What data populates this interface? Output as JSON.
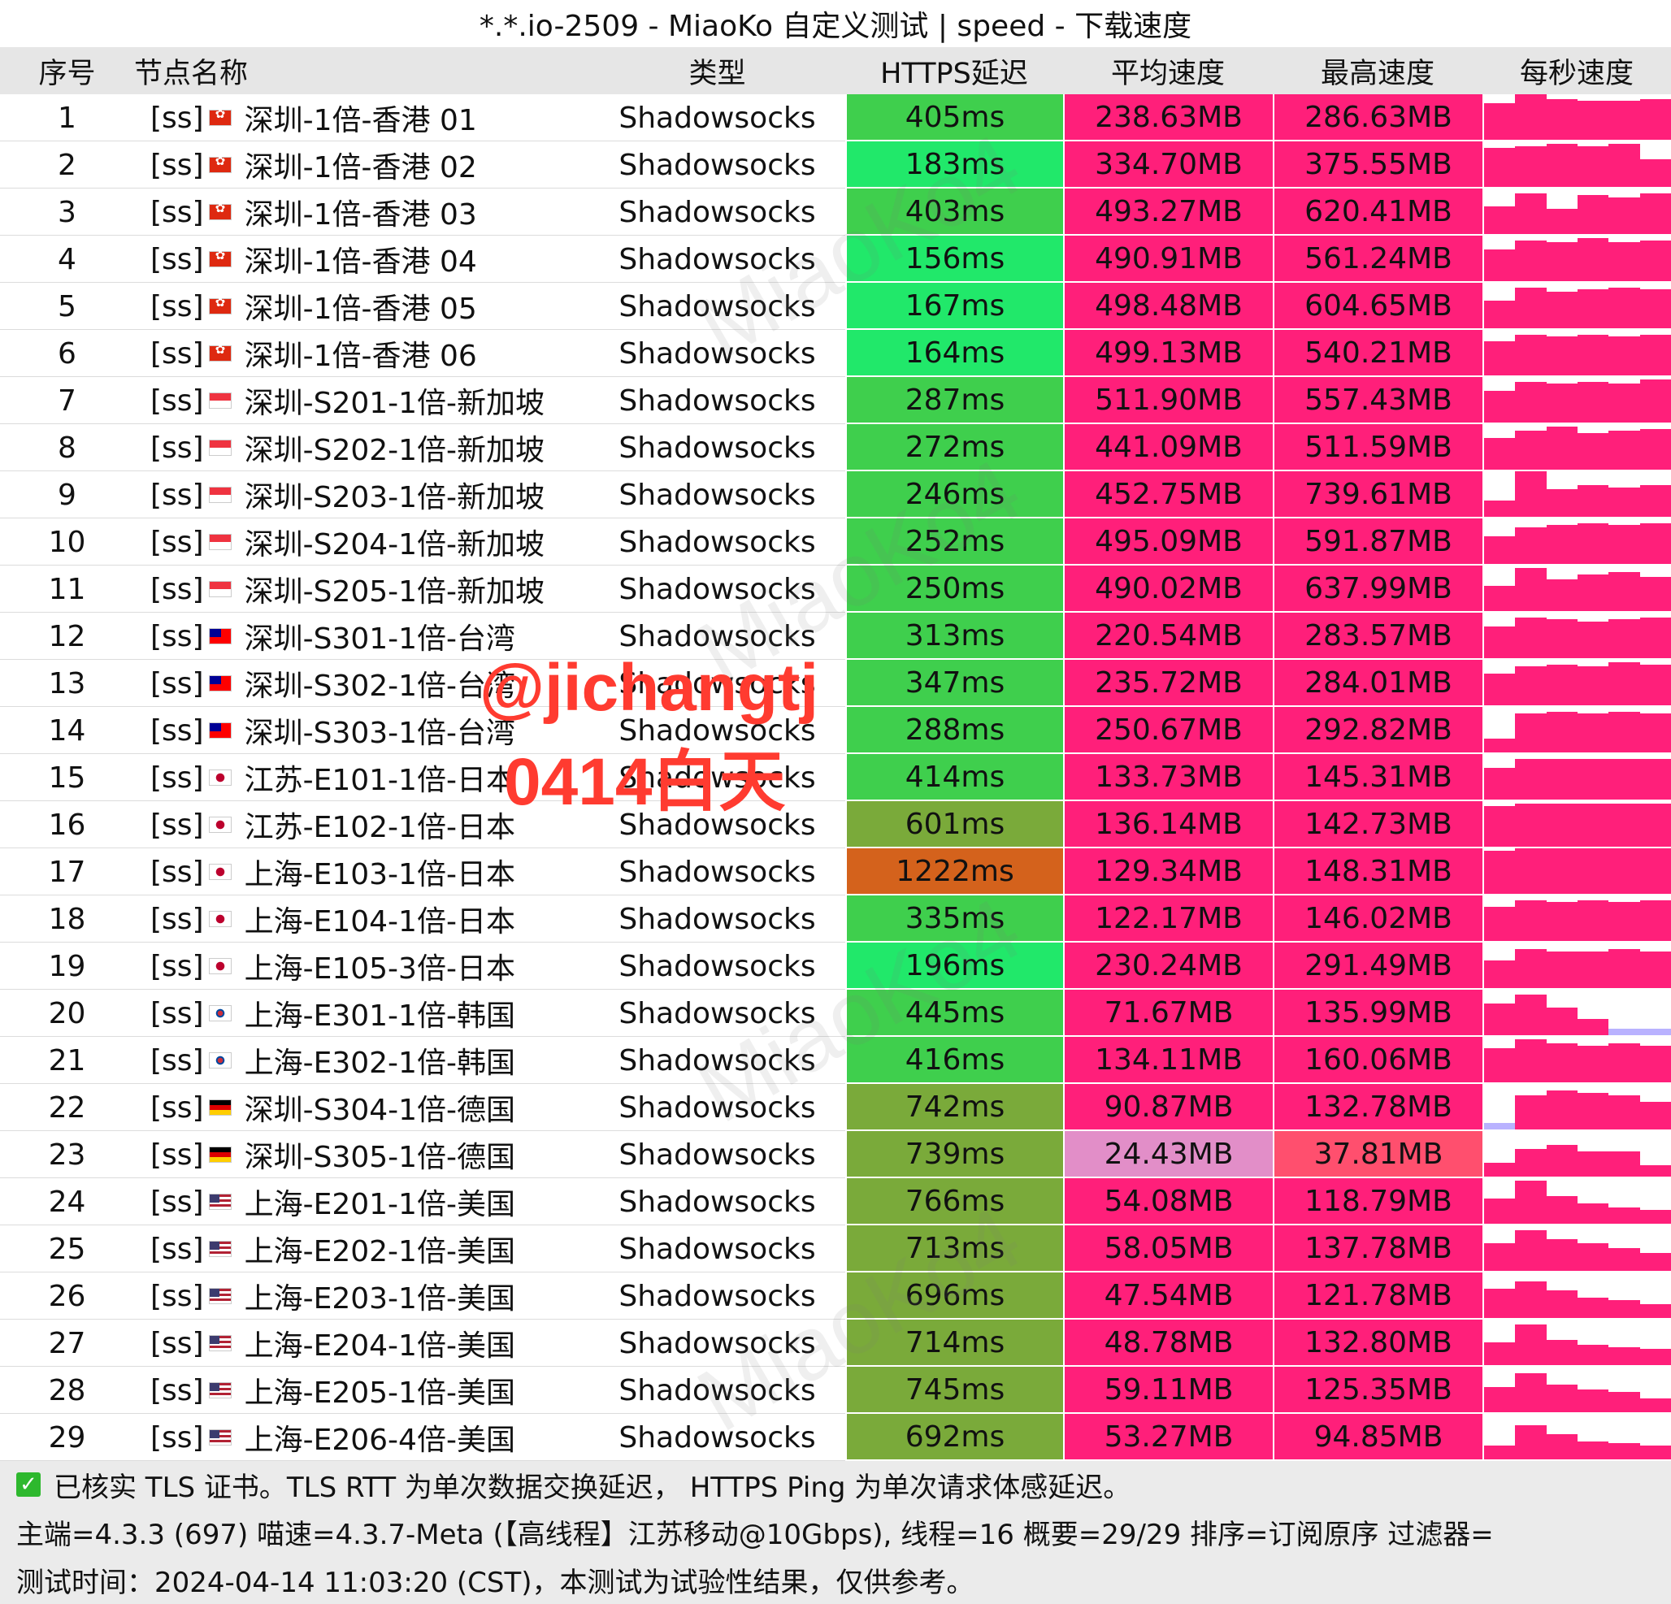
{
  "title": "*.*.io-2509 - MiaoKo 自定义测试 | speed - 下载速度",
  "headers": {
    "idx": "序号",
    "name": "节点名称",
    "type": "类型",
    "latency": "HTTPS延迟",
    "avg": "平均速度",
    "max": "最高速度",
    "per_sec": "每秒速度"
  },
  "colors": {
    "latency_good": "#21e86a",
    "latency_ok": "#3fcf4d",
    "latency_mid": "#7aaa3a",
    "latency_bad": "#d4621c",
    "speed_hot": "#ff1f7a",
    "speed_low": "#e28ec8",
    "speed_mid": "#ff4f6e",
    "spark_low": "#b9b2ff"
  },
  "rows": [
    {
      "idx": "1",
      "tag": "[ss]",
      "flag": "hk",
      "flag_icon": "hong-kong-flag-icon",
      "name": "深圳-1倍-香港 01",
      "type": "Shadowsocks",
      "latency": "405ms",
      "lat_level": "ok",
      "avg": "238.63MB",
      "avg_level": "hot",
      "max": "286.63MB",
      "max_level": "hot",
      "spark": [
        0.8,
        1,
        0.9,
        0.85,
        0.85,
        0.9
      ]
    },
    {
      "idx": "2",
      "tag": "[ss]",
      "flag": "hk",
      "flag_icon": "hong-kong-flag-icon",
      "name": "深圳-1倍-香港 02",
      "type": "Shadowsocks",
      "latency": "183ms",
      "lat_level": "good",
      "avg": "334.70MB",
      "avg_level": "hot",
      "max": "375.55MB",
      "max_level": "hot",
      "spark": [
        0.85,
        0.9,
        0.95,
        0.9,
        0.95,
        0.6
      ]
    },
    {
      "idx": "3",
      "tag": "[ss]",
      "flag": "hk",
      "flag_icon": "hong-kong-flag-icon",
      "name": "深圳-1倍-香港 03",
      "type": "Shadowsocks",
      "latency": "403ms",
      "lat_level": "ok",
      "avg": "493.27MB",
      "avg_level": "hot",
      "max": "620.41MB",
      "max_level": "hot",
      "spark": [
        0.6,
        0.9,
        0.55,
        0.85,
        0.8,
        0.9
      ]
    },
    {
      "idx": "4",
      "tag": "[ss]",
      "flag": "hk",
      "flag_icon": "hong-kong-flag-icon",
      "name": "深圳-1倍-香港 04",
      "type": "Shadowsocks",
      "latency": "156ms",
      "lat_level": "good",
      "avg": "490.91MB",
      "avg_level": "hot",
      "max": "561.24MB",
      "max_level": "hot",
      "spark": [
        0.7,
        0.9,
        0.85,
        0.95,
        0.85,
        0.9
      ]
    },
    {
      "idx": "5",
      "tag": "[ss]",
      "flag": "hk",
      "flag_icon": "hong-kong-flag-icon",
      "name": "深圳-1倍-香港 05",
      "type": "Shadowsocks",
      "latency": "167ms",
      "lat_level": "good",
      "avg": "498.48MB",
      "avg_level": "hot",
      "max": "604.65MB",
      "max_level": "hot",
      "spark": [
        0.6,
        0.9,
        0.8,
        0.85,
        0.9,
        0.85
      ]
    },
    {
      "idx": "6",
      "tag": "[ss]",
      "flag": "hk",
      "flag_icon": "hong-kong-flag-icon",
      "name": "深圳-1倍-香港 06",
      "type": "Shadowsocks",
      "latency": "164ms",
      "lat_level": "good",
      "avg": "499.13MB",
      "avg_level": "hot",
      "max": "540.21MB",
      "max_level": "hot",
      "spark": [
        0.75,
        0.9,
        0.85,
        0.9,
        0.85,
        0.9
      ]
    },
    {
      "idx": "7",
      "tag": "[ss]",
      "flag": "sg",
      "flag_icon": "singapore-flag-icon",
      "name": "深圳-S201-1倍-新加坡",
      "type": "Shadowsocks",
      "latency": "287ms",
      "lat_level": "ok",
      "avg": "511.90MB",
      "avg_level": "hot",
      "max": "557.43MB",
      "max_level": "hot",
      "spark": [
        0.7,
        0.9,
        0.85,
        0.9,
        0.85,
        0.95
      ]
    },
    {
      "idx": "8",
      "tag": "[ss]",
      "flag": "sg",
      "flag_icon": "singapore-flag-icon",
      "name": "深圳-S202-1倍-新加坡",
      "type": "Shadowsocks",
      "latency": "272ms",
      "lat_level": "ok",
      "avg": "441.09MB",
      "avg_level": "hot",
      "max": "511.59MB",
      "max_level": "hot",
      "spark": [
        0.7,
        0.85,
        0.95,
        0.8,
        0.85,
        0.9
      ]
    },
    {
      "idx": "9",
      "tag": "[ss]",
      "flag": "sg",
      "flag_icon": "singapore-flag-icon",
      "name": "深圳-S203-1倍-新加坡",
      "type": "Shadowsocks",
      "latency": "246ms",
      "lat_level": "ok",
      "avg": "452.75MB",
      "avg_level": "hot",
      "max": "739.61MB",
      "max_level": "hot",
      "spark": [
        0.35,
        1,
        0.6,
        0.7,
        0.65,
        0.7
      ]
    },
    {
      "idx": "10",
      "tag": "[ss]",
      "flag": "sg",
      "flag_icon": "singapore-flag-icon",
      "name": "深圳-S204-1倍-新加坡",
      "type": "Shadowsocks",
      "latency": "252ms",
      "lat_level": "ok",
      "avg": "495.09MB",
      "avg_level": "hot",
      "max": "591.87MB",
      "max_level": "hot",
      "spark": [
        0.6,
        0.8,
        0.85,
        0.9,
        0.85,
        0.9
      ]
    },
    {
      "idx": "11",
      "tag": "[ss]",
      "flag": "sg",
      "flag_icon": "singapore-flag-icon",
      "name": "深圳-S205-1倍-新加坡",
      "type": "Shadowsocks",
      "latency": "250ms",
      "lat_level": "ok",
      "avg": "490.02MB",
      "avg_level": "hot",
      "max": "637.99MB",
      "max_level": "hot",
      "spark": [
        0.55,
        0.95,
        0.7,
        0.8,
        0.85,
        0.75
      ]
    },
    {
      "idx": "12",
      "tag": "[ss]",
      "flag": "tw",
      "flag_icon": "taiwan-flag-icon",
      "name": "深圳-S301-1倍-台湾",
      "type": "Shadowsocks",
      "latency": "313ms",
      "lat_level": "ok",
      "avg": "220.54MB",
      "avg_level": "hot",
      "max": "283.57MB",
      "max_level": "hot",
      "spark": [
        0.7,
        0.9,
        0.85,
        0.8,
        0.85,
        0.9
      ]
    },
    {
      "idx": "13",
      "tag": "[ss]",
      "flag": "tw",
      "flag_icon": "taiwan-flag-icon",
      "name": "深圳-S302-1倍-台湾",
      "type": "Shadowsocks",
      "latency": "347ms",
      "lat_level": "ok",
      "avg": "235.72MB",
      "avg_level": "hot",
      "max": "284.01MB",
      "max_level": "hot",
      "spark": [
        0.7,
        0.85,
        0.9,
        0.85,
        0.95,
        0.9
      ]
    },
    {
      "idx": "14",
      "tag": "[ss]",
      "flag": "tw",
      "flag_icon": "taiwan-flag-icon",
      "name": "深圳-S303-1倍-台湾",
      "type": "Shadowsocks",
      "latency": "288ms",
      "lat_level": "ok",
      "avg": "250.67MB",
      "avg_level": "hot",
      "max": "292.82MB",
      "max_level": "hot",
      "spark": [
        0.3,
        0.85,
        0.9,
        0.85,
        0.9,
        0.85
      ]
    },
    {
      "idx": "15",
      "tag": "[ss]",
      "flag": "jp",
      "flag_icon": "japan-flag-icon",
      "name": "江苏-E101-1倍-日本",
      "type": "Shadowsocks",
      "latency": "414ms",
      "lat_level": "ok",
      "avg": "133.73MB",
      "avg_level": "hot",
      "max": "145.31MB",
      "max_level": "hot",
      "spark": [
        0.7,
        0.9,
        0.9,
        0.9,
        0.9,
        0.9
      ]
    },
    {
      "idx": "16",
      "tag": "[ss]",
      "flag": "jp",
      "flag_icon": "japan-flag-icon",
      "name": "江苏-E102-1倍-日本",
      "type": "Shadowsocks",
      "latency": "601ms",
      "lat_level": "mid",
      "avg": "136.14MB",
      "avg_level": "hot",
      "max": "142.73MB",
      "max_level": "hot",
      "spark": [
        0.9,
        0.95,
        0.95,
        0.95,
        0.95,
        0.95
      ]
    },
    {
      "idx": "17",
      "tag": "[ss]",
      "flag": "jp",
      "flag_icon": "japan-flag-icon",
      "name": "上海-E103-1倍-日本",
      "type": "Shadowsocks",
      "latency": "1222ms",
      "lat_level": "bad",
      "avg": "129.34MB",
      "avg_level": "hot",
      "max": "148.31MB",
      "max_level": "hot",
      "spark": [
        0.95,
        1,
        1,
        1,
        1,
        1
      ]
    },
    {
      "idx": "18",
      "tag": "[ss]",
      "flag": "jp",
      "flag_icon": "japan-flag-icon",
      "name": "上海-E104-1倍-日本",
      "type": "Shadowsocks",
      "latency": "335ms",
      "lat_level": "ok",
      "avg": "122.17MB",
      "avg_level": "hot",
      "max": "146.02MB",
      "max_level": "hot",
      "spark": [
        0.75,
        0.9,
        0.85,
        0.9,
        0.85,
        0.9
      ]
    },
    {
      "idx": "19",
      "tag": "[ss]",
      "flag": "jp",
      "flag_icon": "japan-flag-icon",
      "name": "上海-E105-3倍-日本",
      "type": "Shadowsocks",
      "latency": "196ms",
      "lat_level": "good",
      "avg": "230.24MB",
      "avg_level": "hot",
      "max": "291.49MB",
      "max_level": "hot",
      "spark": [
        0.6,
        0.85,
        0.8,
        0.8,
        0.85,
        0.8
      ]
    },
    {
      "idx": "20",
      "tag": "[ss]",
      "flag": "kr",
      "flag_icon": "south-korea-flag-icon",
      "name": "上海-E301-1倍-韩国",
      "type": "Shadowsocks",
      "latency": "445ms",
      "lat_level": "ok",
      "avg": "71.67MB",
      "avg_level": "hot",
      "max": "135.99MB",
      "max_level": "hot",
      "spark": [
        0.7,
        0.9,
        0.6,
        0.35,
        0.15,
        0.15
      ]
    },
    {
      "idx": "21",
      "tag": "[ss]",
      "flag": "kr",
      "flag_icon": "south-korea-flag-icon",
      "name": "上海-E302-1倍-韩国",
      "type": "Shadowsocks",
      "latency": "416ms",
      "lat_level": "ok",
      "avg": "134.11MB",
      "avg_level": "hot",
      "max": "160.06MB",
      "max_level": "hot",
      "spark": [
        0.75,
        0.95,
        0.85,
        0.8,
        0.85,
        0.8
      ]
    },
    {
      "idx": "22",
      "tag": "[ss]",
      "flag": "de",
      "flag_icon": "germany-flag-icon",
      "name": "深圳-S304-1倍-德国",
      "type": "Shadowsocks",
      "latency": "742ms",
      "lat_level": "mid",
      "avg": "90.87MB",
      "avg_level": "hot",
      "max": "132.78MB",
      "max_level": "hot",
      "spark": [
        0.15,
        0.75,
        0.85,
        0.8,
        0.75,
        0.6
      ]
    },
    {
      "idx": "23",
      "tag": "[ss]",
      "flag": "de",
      "flag_icon": "germany-flag-icon",
      "name": "深圳-S305-1倍-德国",
      "type": "Shadowsocks",
      "latency": "739ms",
      "lat_level": "mid",
      "avg": "24.43MB",
      "avg_level": "low",
      "max": "37.81MB",
      "max_level": "mid",
      "spark": [
        0.3,
        0.6,
        0.7,
        0.55,
        0.55,
        0.25
      ]
    },
    {
      "idx": "24",
      "tag": "[ss]",
      "flag": "us",
      "flag_icon": "usa-flag-icon",
      "name": "上海-E201-1倍-美国",
      "type": "Shadowsocks",
      "latency": "766ms",
      "lat_level": "mid",
      "avg": "54.08MB",
      "avg_level": "hot",
      "max": "118.79MB",
      "max_level": "hot",
      "spark": [
        0.55,
        0.95,
        0.6,
        0.45,
        0.35,
        0.3
      ]
    },
    {
      "idx": "25",
      "tag": "[ss]",
      "flag": "us",
      "flag_icon": "usa-flag-icon",
      "name": "上海-E202-1倍-美国",
      "type": "Shadowsocks",
      "latency": "713ms",
      "lat_level": "mid",
      "avg": "58.05MB",
      "avg_level": "hot",
      "max": "137.78MB",
      "max_level": "hot",
      "spark": [
        0.6,
        0.9,
        0.7,
        0.6,
        0.5,
        0.4
      ]
    },
    {
      "idx": "26",
      "tag": "[ss]",
      "flag": "us",
      "flag_icon": "usa-flag-icon",
      "name": "上海-E203-1倍-美国",
      "type": "Shadowsocks",
      "latency": "696ms",
      "lat_level": "mid",
      "avg": "47.54MB",
      "avg_level": "hot",
      "max": "121.78MB",
      "max_level": "hot",
      "spark": [
        0.65,
        0.8,
        0.6,
        0.45,
        0.4,
        0.3
      ]
    },
    {
      "idx": "27",
      "tag": "[ss]",
      "flag": "us",
      "flag_icon": "usa-flag-icon",
      "name": "上海-E204-1倍-美国",
      "type": "Shadowsocks",
      "latency": "714ms",
      "lat_level": "mid",
      "avg": "48.78MB",
      "avg_level": "hot",
      "max": "132.80MB",
      "max_level": "hot",
      "spark": [
        0.5,
        0.9,
        0.55,
        0.45,
        0.4,
        0.35
      ]
    },
    {
      "idx": "28",
      "tag": "[ss]",
      "flag": "us",
      "flag_icon": "usa-flag-icon",
      "name": "上海-E205-1倍-美国",
      "type": "Shadowsocks",
      "latency": "745ms",
      "lat_level": "mid",
      "avg": "59.11MB",
      "avg_level": "hot",
      "max": "125.35MB",
      "max_level": "hot",
      "spark": [
        0.55,
        0.85,
        0.6,
        0.5,
        0.45,
        0.3
      ]
    },
    {
      "idx": "29",
      "tag": "[ss]",
      "flag": "us",
      "flag_icon": "usa-flag-icon",
      "name": "上海-E206-4倍-美国",
      "type": "Shadowsocks",
      "latency": "692ms",
      "lat_level": "mid",
      "avg": "53.27MB",
      "avg_level": "hot",
      "max": "94.85MB",
      "max_level": "hot",
      "spark": [
        0.3,
        0.75,
        0.55,
        0.4,
        0.35,
        0.3
      ]
    }
  ],
  "footer": {
    "line1": "已核实 TLS 证书。TLS RTT 为单次数据交换延迟， HTTPS Ping 为单次请求体感延迟。",
    "line2": "主端=4.3.3 (697) 喵速=4.3.7-Meta (【高线程】江苏移动@10Gbps), 线程=16 概要=29/29 排序=订阅原序 过滤器=",
    "line3": "测试时间：2024-04-14 11:03:20 (CST)，本测试为试验性结果，仅供参考。"
  },
  "watermark": "MiaoKo4",
  "overlay": {
    "line1": "@jichangtj",
    "line2": "0414白天"
  }
}
